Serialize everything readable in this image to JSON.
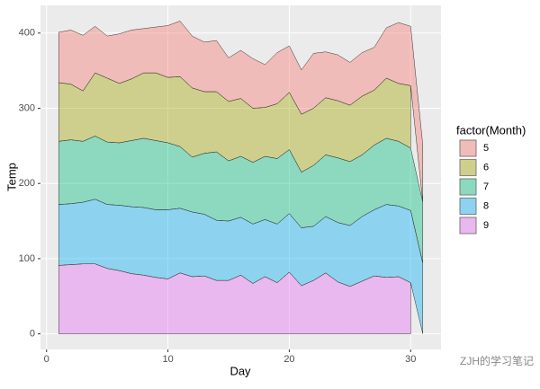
{
  "chart_data": {
    "type": "stacked_area",
    "x_label": "Day",
    "y_label": "Temp",
    "legend_title": "factor(Month)",
    "legend_position": "right",
    "annotation": "ZJH的学习笔记",
    "x": [
      1,
      2,
      3,
      4,
      5,
      6,
      7,
      8,
      9,
      10,
      11,
      12,
      13,
      14,
      15,
      16,
      17,
      18,
      19,
      20,
      21,
      22,
      23,
      24,
      25,
      26,
      27,
      28,
      29,
      30,
      31
    ],
    "series": [
      {
        "name": "5",
        "color": "#F8766D",
        "values": [
          67,
          72,
          74,
          62,
          56,
          66,
          65,
          59,
          61,
          69,
          74,
          69,
          66,
          68,
          58,
          64,
          66,
          57,
          68,
          62,
          59,
          73,
          61,
          61,
          57,
          58,
          57,
          67,
          81,
          79,
          76
        ]
      },
      {
        "name": "6",
        "color": "#A3A500",
        "values": [
          78,
          74,
          67,
          84,
          85,
          79,
          82,
          87,
          90,
          87,
          93,
          92,
          82,
          80,
          79,
          77,
          72,
          65,
          73,
          76,
          77,
          76,
          76,
          76,
          75,
          78,
          73,
          80,
          77,
          83,
          null
        ]
      },
      {
        "name": "7",
        "color": "#00BF7D",
        "values": [
          84,
          85,
          81,
          84,
          83,
          83,
          88,
          92,
          92,
          89,
          82,
          73,
          81,
          91,
          80,
          81,
          82,
          84,
          87,
          85,
          74,
          81,
          82,
          86,
          85,
          82,
          86,
          88,
          86,
          83,
          81
        ]
      },
      {
        "name": "8",
        "color": "#00B0F6",
        "values": [
          81,
          81,
          82,
          86,
          85,
          87,
          89,
          90,
          90,
          92,
          86,
          86,
          82,
          80,
          79,
          77,
          79,
          76,
          78,
          78,
          77,
          72,
          75,
          79,
          81,
          86,
          88,
          97,
          94,
          96,
          94
        ]
      },
      {
        "name": "9",
        "color": "#E76BF3",
        "values": [
          91,
          92,
          93,
          93,
          87,
          84,
          80,
          78,
          75,
          73,
          81,
          76,
          77,
          71,
          71,
          78,
          67,
          76,
          68,
          82,
          64,
          71,
          81,
          69,
          63,
          70,
          77,
          75,
          76,
          68,
          null
        ]
      }
    ],
    "xlim": [
      -0.5,
      32.5
    ],
    "xticks": [
      0,
      10,
      20,
      30
    ],
    "ylim": [
      -20.8,
      436.8
    ],
    "yticks": [
      0,
      100,
      200,
      300,
      400
    ],
    "grid": true
  }
}
